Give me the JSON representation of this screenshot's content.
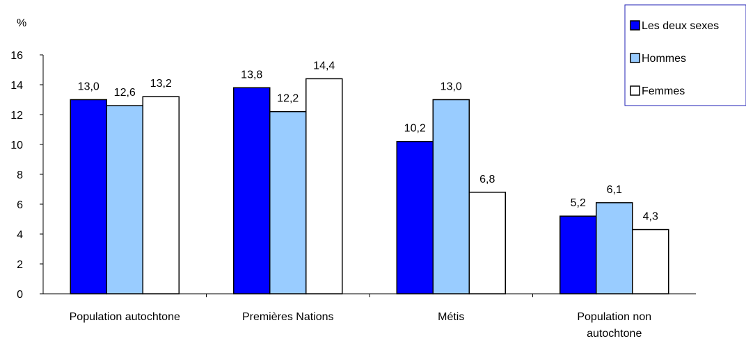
{
  "chart_data": {
    "type": "bar",
    "ylabel": "%",
    "ylim": [
      0,
      16
    ],
    "yticks": [
      "0",
      "2",
      "4",
      "6",
      "8",
      "10",
      "12",
      "14",
      "16"
    ],
    "categories": [
      "Population autochtone",
      "Premières Nations",
      "Métis",
      "Population non autochtone"
    ],
    "series": [
      {
        "name": "Les deux sexes",
        "color": "#0000ff",
        "values": [
          13.0,
          13.8,
          10.2,
          5.2
        ],
        "labels": [
          "13,0",
          "13,8",
          "10,2",
          "5,2"
        ]
      },
      {
        "name": "Hommes",
        "color": "#99ccff",
        "values": [
          12.6,
          12.2,
          13.0,
          6.1
        ],
        "labels": [
          "12,6",
          "12,2",
          "13,0",
          "6,1"
        ]
      },
      {
        "name": "Femmes",
        "color": "#ffffff",
        "values": [
          13.2,
          14.4,
          6.8,
          4.3
        ],
        "labels": [
          "13,2",
          "14,4",
          "6,8",
          "4,3"
        ]
      }
    ],
    "legend_position": "top-right",
    "grid": false
  }
}
